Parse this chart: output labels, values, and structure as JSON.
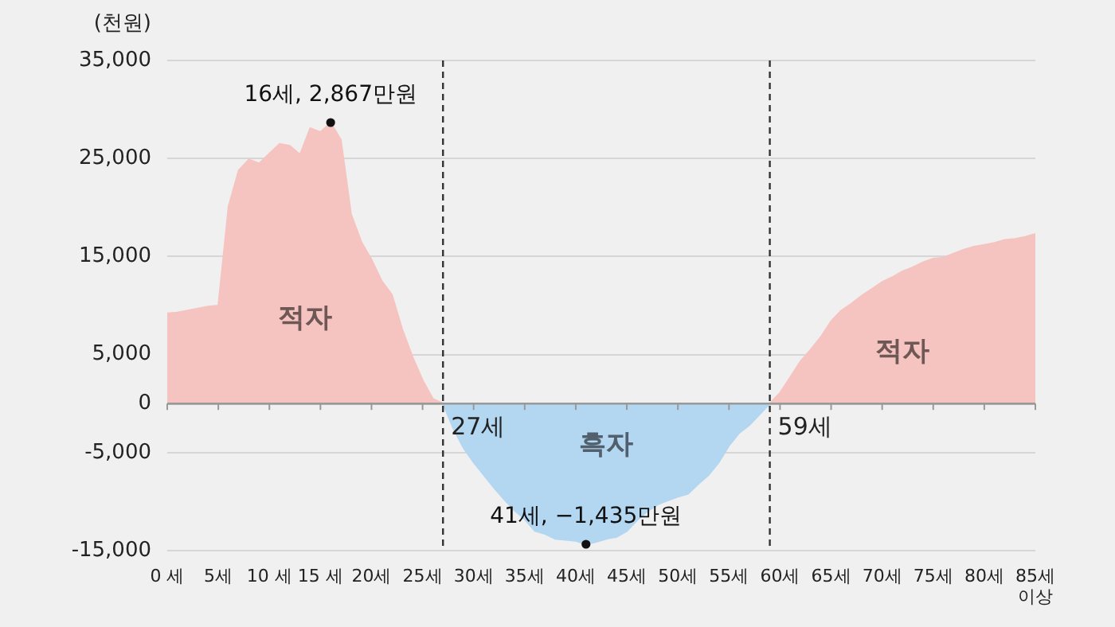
{
  "chart_data": {
    "type": "area",
    "ylabel": "(천원)",
    "series": [
      {
        "name": "적자",
        "color": "#f5c3c0",
        "x": [
          0,
          1,
          2,
          3,
          4,
          5,
          6,
          7,
          8,
          9,
          10,
          11,
          12,
          13,
          14,
          15,
          16,
          17,
          18,
          19,
          20,
          21,
          22,
          23,
          24,
          25,
          26,
          27
        ],
        "values": [
          9200,
          9300,
          9500,
          9700,
          9900,
          10000,
          20100,
          23800,
          24900,
          24500,
          25500,
          26500,
          26300,
          25400,
          28100,
          27700,
          28670,
          26900,
          19300,
          16500,
          14700,
          12500,
          11100,
          7600,
          4800,
          2400,
          500,
          0
        ]
      },
      {
        "name": "흑자",
        "color": "#b3d6f1",
        "x": [
          27,
          28,
          29,
          30,
          31,
          32,
          33,
          34,
          35,
          36,
          37,
          38,
          39,
          40,
          41,
          42,
          43,
          44,
          45,
          46,
          47,
          48,
          49,
          50,
          51,
          52,
          53,
          54,
          55,
          56,
          57,
          58,
          59
        ],
        "values": [
          0,
          -2500,
          -4500,
          -6000,
          -7300,
          -8600,
          -9800,
          -10900,
          -11800,
          -13000,
          -13300,
          -13800,
          -13900,
          -14000,
          -14350,
          -14100,
          -13800,
          -13600,
          -13000,
          -11900,
          -11000,
          -10300,
          -9900,
          -9500,
          -9200,
          -8200,
          -7300,
          -6000,
          -4300,
          -3000,
          -2200,
          -1100,
          0
        ]
      },
      {
        "name": "적자",
        "color": "#f5c3c0",
        "x": [
          59,
          60,
          61,
          62,
          63,
          64,
          65,
          66,
          67,
          68,
          69,
          70,
          71,
          72,
          73,
          74,
          75,
          76,
          77,
          78,
          79,
          80,
          81,
          82,
          83,
          84,
          85
        ],
        "values": [
          0,
          1100,
          2700,
          4300,
          5500,
          6800,
          8400,
          9500,
          10200,
          11000,
          11700,
          12400,
          12900,
          13500,
          13900,
          14400,
          14800,
          14900,
          15300,
          15700,
          16000,
          16200,
          16400,
          16700,
          16800,
          17000,
          17300
        ]
      }
    ],
    "xlim": [
      0,
      85
    ],
    "xticks": [
      {
        "value": 0,
        "label": "0 세"
      },
      {
        "value": 5,
        "label": "5세"
      },
      {
        "value": 10,
        "label": "10 세"
      },
      {
        "value": 15,
        "label": "15 세"
      },
      {
        "value": 20,
        "label": "20세"
      },
      {
        "value": 25,
        "label": "25세"
      },
      {
        "value": 30,
        "label": "30세"
      },
      {
        "value": 35,
        "label": "35세"
      },
      {
        "value": 40,
        "label": "40세"
      },
      {
        "value": 45,
        "label": "45세"
      },
      {
        "value": 50,
        "label": "50세"
      },
      {
        "value": 55,
        "label": "55세"
      },
      {
        "value": 60,
        "label": "60세"
      },
      {
        "value": 65,
        "label": "65세"
      },
      {
        "value": 70,
        "label": "70세"
      },
      {
        "value": 75,
        "label": "75세"
      },
      {
        "value": 80,
        "label": "80세"
      },
      {
        "value": 85,
        "label": "85세\n이상"
      }
    ],
    "ylim": [
      -15000,
      35000
    ],
    "yticks": [
      {
        "value": 35000,
        "label": "35,000"
      },
      {
        "value": 25000,
        "label": "25,000"
      },
      {
        "value": 15000,
        "label": "15,000"
      },
      {
        "value": 5000,
        "label": "5,000"
      },
      0,
      {
        "value": -5000,
        "label": "-5,000"
      },
      {
        "value": -15000,
        "label": "-15,000"
      }
    ],
    "grid": "y",
    "legend": false,
    "ref_lines": [
      {
        "axis": "x",
        "value": 27,
        "label": "27세",
        "color": "#333333",
        "line_style": "dashed"
      },
      {
        "axis": "x",
        "value": 59,
        "label": "59세",
        "color": "#333333",
        "line_style": "dashed"
      }
    ],
    "annotations": [
      {
        "text": "16세, 2,867만원",
        "x": 16,
        "y": 28670
      },
      {
        "text": "41세, −1,435만원",
        "x": 41,
        "y": -14350
      }
    ]
  }
}
